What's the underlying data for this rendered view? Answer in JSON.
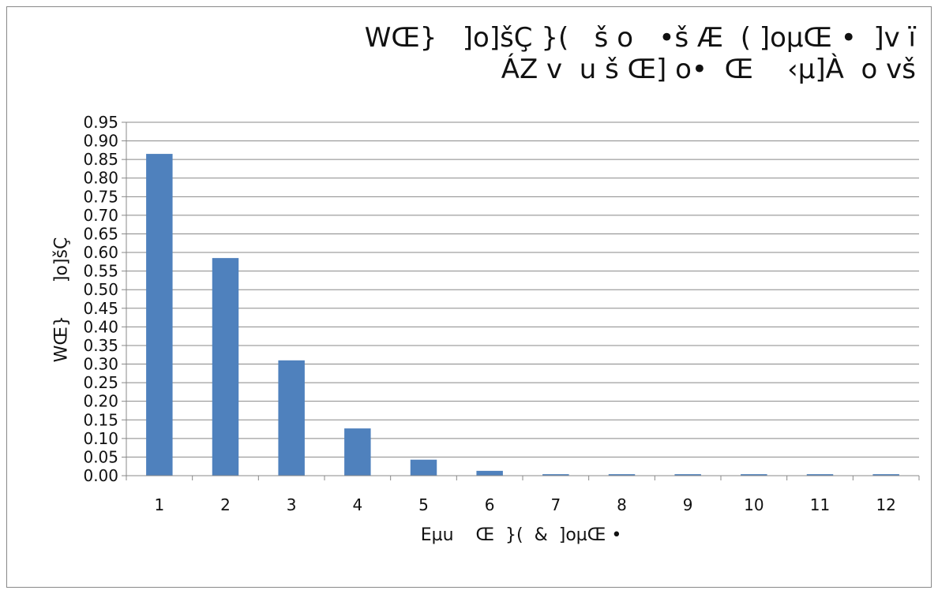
{
  "chart_data": {
    "type": "bar",
    "title_lines": [
      "WŒ}   ]o]šÇ }(   š o   •š Æ  ( ]oµŒ •  ]v ï",
      "ÁZ v  u š Œ] o•  Œ    ‹µ]À  o vš"
    ],
    "xlabel": "Eµu    Œ  }(  &  ]oµŒ •",
    "ylabel": "WŒ}      ]o]šÇ",
    "categories": [
      "1",
      "2",
      "3",
      "4",
      "5",
      "6",
      "7",
      "8",
      "9",
      "10",
      "11",
      "12"
    ],
    "values": [
      0.865,
      0.585,
      0.31,
      0.127,
      0.043,
      0.013,
      0.004,
      0.004,
      0.004,
      0.004,
      0.004,
      0.004
    ],
    "ylim": [
      0,
      0.95
    ],
    "ytick_step": 0.05,
    "grid": true,
    "legend": "none",
    "bar_color": "#4f81bd",
    "grid_color": "#888888"
  }
}
